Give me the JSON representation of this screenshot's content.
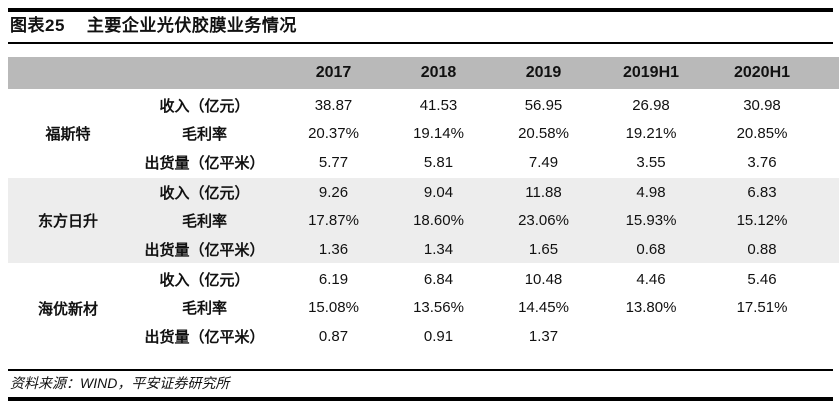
{
  "title": {
    "label": "图表25",
    "text": "主要企业光伏胶膜业务情况"
  },
  "source_note": "资料来源：WIND，平安证券研究所",
  "colors": {
    "header_bg": "#b9b9b9",
    "alt_row_bg": "#ededed",
    "rule": "#000000"
  },
  "table": {
    "year_headers": [
      "2017",
      "2018",
      "2019",
      "2019H1",
      "2020H1"
    ],
    "companies": [
      {
        "name": "福斯特",
        "rows": [
          {
            "metric": "收入（亿元）",
            "values": [
              "38.87",
              "41.53",
              "56.95",
              "26.98",
              "30.98"
            ]
          },
          {
            "metric": "毛利率",
            "values": [
              "20.37%",
              "19.14%",
              "20.58%",
              "19.21%",
              "20.85%"
            ]
          },
          {
            "metric": "出货量（亿平米）",
            "values": [
              "5.77",
              "5.81",
              "7.49",
              "3.55",
              "3.76"
            ]
          }
        ]
      },
      {
        "name": "东方日升",
        "rows": [
          {
            "metric": "收入（亿元）",
            "values": [
              "9.26",
              "9.04",
              "11.88",
              "4.98",
              "6.83"
            ]
          },
          {
            "metric": "毛利率",
            "values": [
              "17.87%",
              "18.60%",
              "23.06%",
              "15.93%",
              "15.12%"
            ]
          },
          {
            "metric": "出货量（亿平米）",
            "values": [
              "1.36",
              "1.34",
              "1.65",
              "0.68",
              "0.88"
            ]
          }
        ]
      },
      {
        "name": "海优新材",
        "rows": [
          {
            "metric": "收入（亿元）",
            "values": [
              "6.19",
              "6.84",
              "10.48",
              "4.46",
              "5.46"
            ]
          },
          {
            "metric": "毛利率",
            "values": [
              "15.08%",
              "13.56%",
              "14.45%",
              "13.80%",
              "17.51%"
            ]
          },
          {
            "metric": "出货量（亿平米）",
            "values": [
              "0.87",
              "0.91",
              "1.37",
              "",
              ""
            ]
          }
        ]
      }
    ]
  }
}
